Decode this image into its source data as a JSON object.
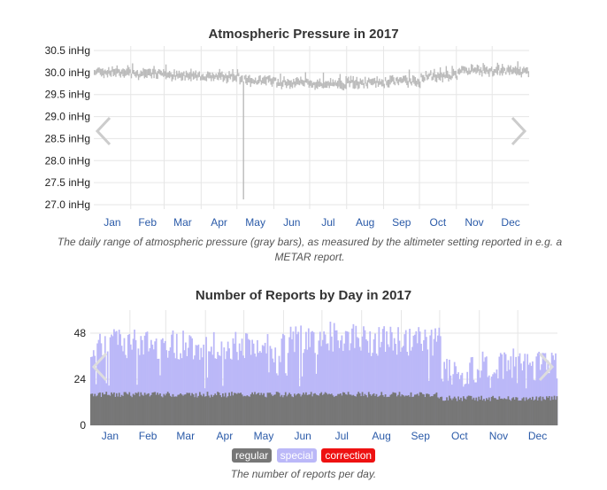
{
  "chart_data": [
    {
      "type": "bar",
      "title": "Atmospheric Pressure in 2017",
      "yticks": [
        "30.5 inHg",
        "30.0 inHg",
        "29.5 inHg",
        "29.0 inHg",
        "28.5 inHg",
        "28.0 inHg",
        "27.5 inHg",
        "27.0 inHg"
      ],
      "ytick_values": [
        30.5,
        30.0,
        29.5,
        29.0,
        28.5,
        28.0,
        27.5,
        27.0
      ],
      "ylim": [
        26.9,
        30.6
      ],
      "categories": [
        "Jan",
        "Feb",
        "Mar",
        "Apr",
        "May",
        "Jun",
        "Jul",
        "Aug",
        "Sep",
        "Oct",
        "Nov",
        "Dec"
      ],
      "xlim": [
        0,
        365
      ],
      "monthly_baseline": [
        30.02,
        29.98,
        29.93,
        29.92,
        29.82,
        29.76,
        29.74,
        29.76,
        29.8,
        29.92,
        30.05,
        30.02
      ],
      "outlier": {
        "day": 125,
        "low": 27.12,
        "high": 29.8
      },
      "grid": true,
      "bar_color": "#bbbbbb",
      "caption": "The daily range of atmospheric pressure (gray bars), as measured by the altimeter setting reported in e.g. a METAR report."
    },
    {
      "type": "bar",
      "stacked": true,
      "title": "Number of Reports by Day in 2017",
      "yticks": [
        "48",
        "24",
        "0"
      ],
      "ytick_values": [
        48,
        24,
        0
      ],
      "ylim": [
        0,
        60
      ],
      "categories": [
        "Jan",
        "Feb",
        "Mar",
        "Apr",
        "May",
        "Jun",
        "Jul",
        "Aug",
        "Sep",
        "Oct",
        "Nov",
        "Dec"
      ],
      "xlim": [
        0,
        365
      ],
      "series": [
        {
          "name": "regular",
          "color": "#777777",
          "typical_value": 16
        },
        {
          "name": "special",
          "color": "#bbb8f8",
          "monthly_typical_total": [
            43,
            42,
            42,
            42,
            40,
            44,
            46,
            44,
            44,
            28,
            32,
            34
          ]
        },
        {
          "name": "correction",
          "color": "#ee1111",
          "typical_value": 0
        }
      ],
      "legend_position": "bottom",
      "caption": "The number of reports per day."
    }
  ]
}
